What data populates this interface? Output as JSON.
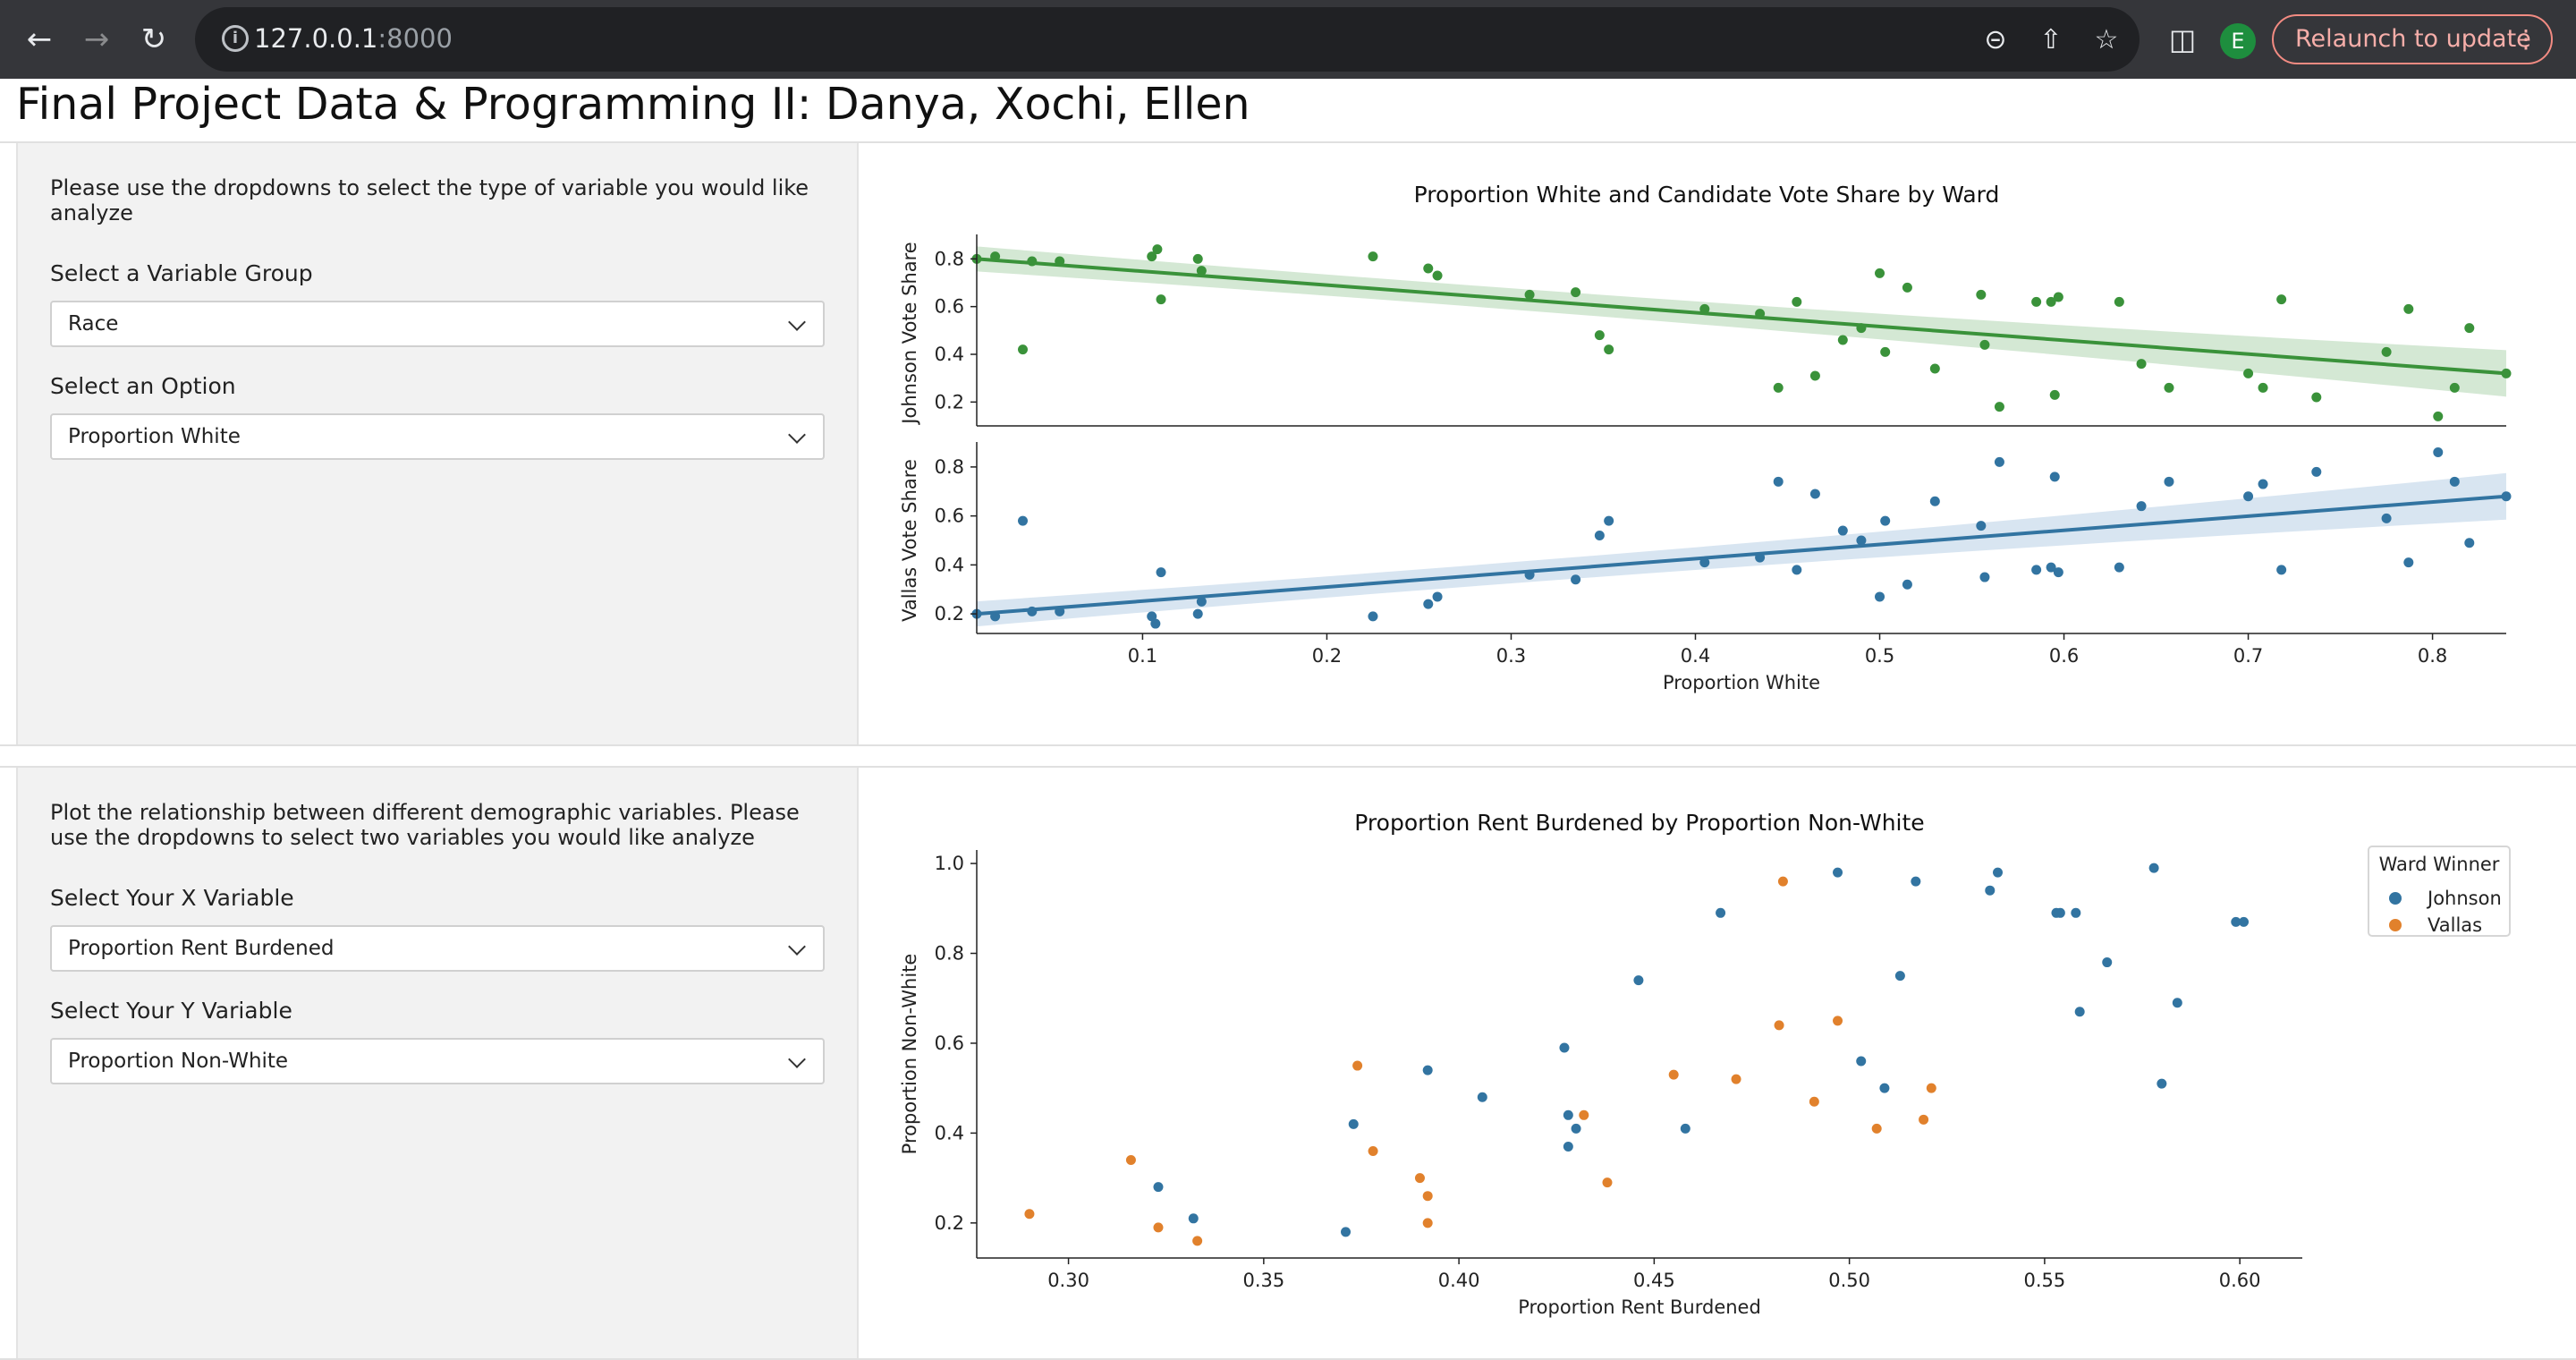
{
  "browser": {
    "url_host": "127.0.0.1",
    "url_port": ":8000",
    "relaunch_label": "Relaunch to update",
    "avatar_initial": "E"
  },
  "page": {
    "title": "Final Project Data & Programming II: Danya, Xochi, Ellen"
  },
  "panel1": {
    "intro": "Please use the dropdowns to select the type of variable you would like analyze",
    "group_label": "Select a Variable Group",
    "group_value": "Race",
    "option_label": "Select an Option",
    "option_value": "Proportion White"
  },
  "panel2": {
    "intro": "Plot the relationship between different demographic variables. Please use the dropdowns to select two variables you would like analyze",
    "x_label": "Select Your X Variable",
    "x_value": "Proportion Rent Burdened",
    "y_label": "Select Your Y Variable",
    "y_value": "Proportion Non-White"
  },
  "colors": {
    "johnson_green": "#3a923a",
    "vallas_blue": "#3274a1",
    "johnson_blue": "#3274a1",
    "vallas_orange": "#e1812c"
  },
  "chart_data": [
    {
      "type": "scatter",
      "title": "Proportion White and Candidate Vote Share by Ward",
      "xlabel": "Proportion White",
      "xlim": [
        0.01,
        0.84
      ],
      "xticks": [
        0.1,
        0.2,
        0.3,
        0.4,
        0.5,
        0.6,
        0.7,
        0.8
      ],
      "panels": [
        {
          "ylabel": "Johnson Vote Share",
          "ylim": [
            0.1,
            0.88
          ],
          "yticks": [
            0.2,
            0.4,
            0.6,
            0.8
          ],
          "fit": {
            "x0": 0.01,
            "y0": 0.8,
            "x1": 0.84,
            "y1": 0.32
          },
          "points": [
            [
              0.01,
              0.8
            ],
            [
              0.02,
              0.81
            ],
            [
              0.04,
              0.79
            ],
            [
              0.035,
              0.42
            ],
            [
              0.055,
              0.79
            ],
            [
              0.105,
              0.81
            ],
            [
              0.108,
              0.84
            ],
            [
              0.11,
              0.63
            ],
            [
              0.13,
              0.8
            ],
            [
              0.132,
              0.75
            ],
            [
              0.225,
              0.81
            ],
            [
              0.255,
              0.76
            ],
            [
              0.26,
              0.73
            ],
            [
              0.31,
              0.65
            ],
            [
              0.335,
              0.66
            ],
            [
              0.348,
              0.48
            ],
            [
              0.353,
              0.42
            ],
            [
              0.405,
              0.59
            ],
            [
              0.435,
              0.57
            ],
            [
              0.445,
              0.26
            ],
            [
              0.455,
              0.62
            ],
            [
              0.465,
              0.31
            ],
            [
              0.48,
              0.46
            ],
            [
              0.49,
              0.51
            ],
            [
              0.5,
              0.74
            ],
            [
              0.503,
              0.41
            ],
            [
              0.515,
              0.68
            ],
            [
              0.53,
              0.34
            ],
            [
              0.555,
              0.65
            ],
            [
              0.557,
              0.44
            ],
            [
              0.565,
              0.18
            ],
            [
              0.585,
              0.62
            ],
            [
              0.593,
              0.62
            ],
            [
              0.595,
              0.23
            ],
            [
              0.597,
              0.64
            ],
            [
              0.63,
              0.62
            ],
            [
              0.642,
              0.36
            ],
            [
              0.657,
              0.26
            ],
            [
              0.7,
              0.32
            ],
            [
              0.708,
              0.26
            ],
            [
              0.718,
              0.63
            ],
            [
              0.737,
              0.22
            ],
            [
              0.775,
              0.41
            ],
            [
              0.787,
              0.59
            ],
            [
              0.803,
              0.14
            ],
            [
              0.812,
              0.26
            ],
            [
              0.82,
              0.51
            ],
            [
              0.84,
              0.32
            ]
          ]
        },
        {
          "ylabel": "Vallas Vote Share",
          "ylim": [
            0.12,
            0.88
          ],
          "yticks": [
            0.2,
            0.4,
            0.6,
            0.8
          ],
          "fit": {
            "x0": 0.01,
            "y0": 0.2,
            "x1": 0.84,
            "y1": 0.68
          },
          "points": [
            [
              0.01,
              0.2
            ],
            [
              0.02,
              0.19
            ],
            [
              0.04,
              0.21
            ],
            [
              0.035,
              0.58
            ],
            [
              0.055,
              0.21
            ],
            [
              0.105,
              0.19
            ],
            [
              0.107,
              0.16
            ],
            [
              0.11,
              0.37
            ],
            [
              0.13,
              0.2
            ],
            [
              0.132,
              0.25
            ],
            [
              0.225,
              0.19
            ],
            [
              0.255,
              0.24
            ],
            [
              0.26,
              0.27
            ],
            [
              0.31,
              0.36
            ],
            [
              0.335,
              0.34
            ],
            [
              0.348,
              0.52
            ],
            [
              0.353,
              0.58
            ],
            [
              0.405,
              0.41
            ],
            [
              0.435,
              0.43
            ],
            [
              0.445,
              0.74
            ],
            [
              0.455,
              0.38
            ],
            [
              0.465,
              0.69
            ],
            [
              0.48,
              0.54
            ],
            [
              0.49,
              0.5
            ],
            [
              0.5,
              0.27
            ],
            [
              0.503,
              0.58
            ],
            [
              0.515,
              0.32
            ],
            [
              0.53,
              0.66
            ],
            [
              0.555,
              0.56
            ],
            [
              0.557,
              0.35
            ],
            [
              0.565,
              0.82
            ],
            [
              0.585,
              0.38
            ],
            [
              0.593,
              0.39
            ],
            [
              0.595,
              0.76
            ],
            [
              0.597,
              0.37
            ],
            [
              0.63,
              0.39
            ],
            [
              0.642,
              0.64
            ],
            [
              0.657,
              0.74
            ],
            [
              0.7,
              0.68
            ],
            [
              0.708,
              0.73
            ],
            [
              0.718,
              0.38
            ],
            [
              0.737,
              0.78
            ],
            [
              0.775,
              0.59
            ],
            [
              0.787,
              0.41
            ],
            [
              0.803,
              0.86
            ],
            [
              0.812,
              0.74
            ],
            [
              0.82,
              0.49
            ],
            [
              0.84,
              0.68
            ]
          ]
        }
      ]
    },
    {
      "type": "scatter",
      "title": "Proportion Rent Burdened by Proportion Non-White",
      "xlabel": "Proportion Rent Burdened",
      "ylabel": "Proportion Non-White",
      "xlim": [
        0.2765,
        0.616
      ],
      "ylim": [
        0.122,
        1.03
      ],
      "xticks": [
        0.3,
        0.35,
        0.4,
        0.45,
        0.5,
        0.55,
        0.6
      ],
      "yticks": [
        0.2,
        0.4,
        0.6,
        0.8,
        1.0
      ],
      "legend": {
        "title": "Ward Winner",
        "placement": "top-right"
      },
      "series": [
        {
          "name": "Johnson",
          "points": [
            [
              0.323,
              0.28
            ],
            [
              0.332,
              0.21
            ],
            [
              0.371,
              0.18
            ],
            [
              0.373,
              0.42
            ],
            [
              0.392,
              0.54
            ],
            [
              0.406,
              0.48
            ],
            [
              0.427,
              0.59
            ],
            [
              0.428,
              0.37
            ],
            [
              0.428,
              0.44
            ],
            [
              0.43,
              0.41
            ],
            [
              0.446,
              0.74
            ],
            [
              0.458,
              0.41
            ],
            [
              0.467,
              0.89
            ],
            [
              0.497,
              0.98
            ],
            [
              0.503,
              0.56
            ],
            [
              0.509,
              0.5
            ],
            [
              0.513,
              0.75
            ],
            [
              0.517,
              0.96
            ],
            [
              0.536,
              0.94
            ],
            [
              0.538,
              0.98
            ],
            [
              0.553,
              0.89
            ],
            [
              0.554,
              0.89
            ],
            [
              0.558,
              0.89
            ],
            [
              0.559,
              0.67
            ],
            [
              0.566,
              0.78
            ],
            [
              0.578,
              0.99
            ],
            [
              0.58,
              0.51
            ],
            [
              0.584,
              0.69
            ],
            [
              0.599,
              0.87
            ],
            [
              0.601,
              0.87
            ]
          ]
        },
        {
          "name": "Vallas",
          "points": [
            [
              0.29,
              0.22
            ],
            [
              0.316,
              0.34
            ],
            [
              0.323,
              0.19
            ],
            [
              0.333,
              0.16
            ],
            [
              0.374,
              0.55
            ],
            [
              0.378,
              0.36
            ],
            [
              0.39,
              0.3
            ],
            [
              0.392,
              0.26
            ],
            [
              0.392,
              0.2
            ],
            [
              0.432,
              0.44
            ],
            [
              0.438,
              0.29
            ],
            [
              0.455,
              0.53
            ],
            [
              0.471,
              0.52
            ],
            [
              0.482,
              0.64
            ],
            [
              0.483,
              0.96
            ],
            [
              0.491,
              0.47
            ],
            [
              0.497,
              0.65
            ],
            [
              0.507,
              0.41
            ],
            [
              0.519,
              0.43
            ],
            [
              0.521,
              0.5
            ]
          ]
        }
      ]
    }
  ]
}
